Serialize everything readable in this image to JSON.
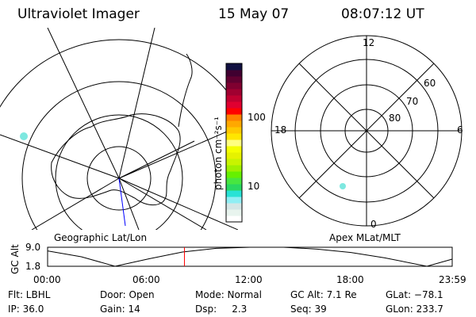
{
  "header": {
    "instrument": "Ultraviolet Imager",
    "date": "15 May 07",
    "time": "08:07:12 UT"
  },
  "colorbar": {
    "label": "photon cm⁻²s⁻¹",
    "ticks": [
      "100",
      "10"
    ],
    "colors": [
      "#ffffff",
      "#e8f4ee",
      "#d4e6e6",
      "#90eef4",
      "#28e2d6",
      "#2ad860",
      "#48e640",
      "#66f000",
      "#a0f000",
      "#c8f400",
      "#e6f200",
      "#f4ff00",
      "#ffff80",
      "#ffe600",
      "#ffc800",
      "#ffa800",
      "#ff8000",
      "#ff0000",
      "#e00030",
      "#c00030",
      "#a00030",
      "#800030",
      "#600030",
      "#400030",
      "#101040"
    ]
  },
  "left_map": {
    "label": "Geographic Lat/Lon"
  },
  "right_map": {
    "label": "Apex MLat/MLT",
    "mlt_labels": [
      "12",
      "6",
      "0",
      "18"
    ],
    "lat_labels": [
      "60",
      "70",
      "80"
    ]
  },
  "chart_data": {
    "type": "line",
    "ylabel": "GC Alt",
    "yticks": [
      "9.0",
      "1.8"
    ],
    "ylim": [
      1.8,
      9.0
    ],
    "xticks": [
      "00:00",
      "06:00",
      "12:00",
      "18:00",
      "23:59"
    ],
    "x": [
      0,
      2,
      4,
      6,
      8,
      10,
      12,
      14,
      16,
      18,
      20,
      22.5,
      24
    ],
    "y": [
      7.6,
      5.4,
      1.8,
      4.6,
      7.2,
      8.6,
      9.0,
      9.0,
      8.3,
      7.0,
      5.0,
      1.8,
      4.5
    ],
    "marker_time": "08:07",
    "marker_color": "#ff0000"
  },
  "status": {
    "flt": "Flt: LBHL",
    "ip": "IP: 36.0",
    "door": "Door: Open",
    "gain": "Gain: 14",
    "mode": "Mode: Normal",
    "dsp": "Dsp:     2.3",
    "gcalt": "GC Alt: 7.1 Re",
    "seq": "Seq: 39",
    "glat": "GLat: −78.1",
    "glon": "GLon: 233.7"
  }
}
